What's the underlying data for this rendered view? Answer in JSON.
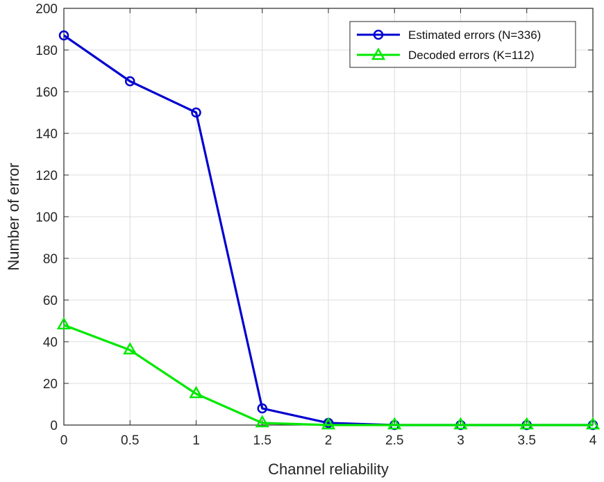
{
  "chart_data": {
    "type": "line",
    "title": "",
    "xlabel": "Channel reliability",
    "ylabel": "Number of error",
    "xlim": [
      0,
      4
    ],
    "ylim": [
      0,
      200
    ],
    "grid": true,
    "legend_position": "top-right",
    "x": [
      0,
      0.5,
      1,
      1.5,
      2,
      2.5,
      3,
      3.5,
      4
    ],
    "x_tick_labels": [
      "0",
      "0.5",
      "1",
      "1.5",
      "2",
      "2.5",
      "3",
      "3.5",
      "4"
    ],
    "y_ticks": [
      0,
      20,
      40,
      60,
      80,
      100,
      120,
      140,
      160,
      180,
      200
    ],
    "y_tick_labels": [
      "0",
      "20",
      "40",
      "60",
      "80",
      "100",
      "120",
      "140",
      "160",
      "180",
      "200"
    ],
    "series": [
      {
        "name": "Estimated errors (N=336)",
        "values": [
          187,
          165,
          150,
          8,
          1,
          0,
          0,
          0,
          0
        ],
        "color": "#0000d0",
        "marker": "circle"
      },
      {
        "name": "Decoded errors (K=112)",
        "values": [
          48,
          36,
          15,
          1,
          0,
          0,
          0,
          0,
          0
        ],
        "color": "#00e800",
        "marker": "triangle"
      }
    ]
  }
}
